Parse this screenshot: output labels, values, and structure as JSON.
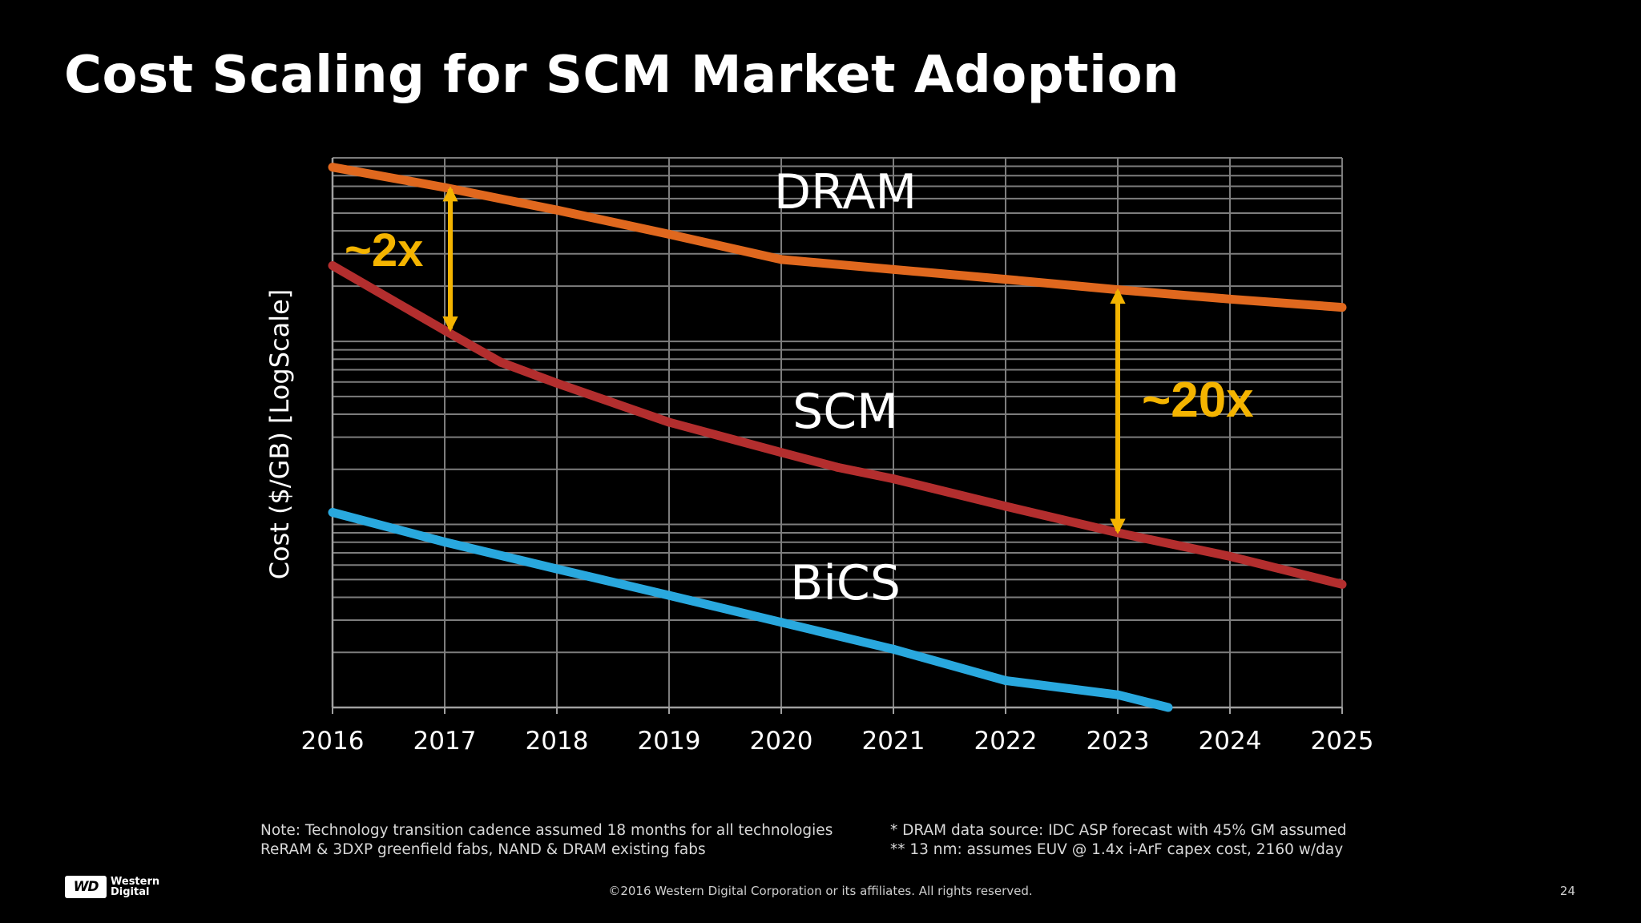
{
  "slide": {
    "title": "Cost Scaling for SCM Market Adoption",
    "notes_left": [
      "Note: Technology transition cadence assumed 18 months for all technologies",
      "ReRAM & 3DXP greenfield fabs, NAND & DRAM existing fabs"
    ],
    "notes_right": [
      "* DRAM data source: IDC ASP forecast with 45% GM assumed",
      "** 13 nm: assumes EUV @ 1.4x i-ArF capex cost, 2160 w/day"
    ],
    "logo_icon": "wd-logo-icon",
    "logo_mark": "WD",
    "logo_text_lines": [
      "Western",
      "Digital"
    ],
    "copyright": "©2016  Western Digital Corporation  or its affiliates.  All rights reserved.",
    "page_number": "24"
  },
  "chart_data": {
    "type": "line",
    "title": "",
    "xlabel": "",
    "ylabel": "Cost ($/GB)  [LogScale]",
    "yscale": "log",
    "y_units": "relative cost, log decades (unlabeled)",
    "xlim": [
      2016,
      2025
    ],
    "ylim": [
      0,
      1
    ],
    "x_ticks": [
      "2016",
      "2017",
      "2018",
      "2019",
      "2020",
      "2021",
      "2022",
      "2023",
      "2024",
      "2025"
    ],
    "y_tick_labels": [],
    "grid": true,
    "legend": "none (series labeled inline)",
    "background": "#000000",
    "series": [
      {
        "name": "DRAM",
        "color": "#e0681e",
        "x": [
          2016,
          2017,
          2018,
          2019,
          2020,
          2021,
          2022,
          2023,
          2024,
          2025
        ],
        "y": [
          0.983,
          0.946,
          0.905,
          0.861,
          0.815,
          0.797,
          0.779,
          0.76,
          0.743,
          0.728
        ]
      },
      {
        "name": "SCM",
        "color": "#b32e2e",
        "x": [
          2016,
          2017,
          2017.5,
          2018,
          2019,
          2020,
          2020.5,
          2021,
          2022,
          2023,
          2024,
          2025
        ],
        "y": [
          0.804,
          0.686,
          0.628,
          0.59,
          0.519,
          0.464,
          0.437,
          0.416,
          0.366,
          0.318,
          0.275,
          0.224
        ]
      },
      {
        "name": "BiCS",
        "color": "#29a8de",
        "x": [
          2016,
          2017,
          2018,
          2019,
          2020,
          2021,
          2022,
          2023,
          2023.45
        ],
        "y": [
          0.355,
          0.301,
          0.252,
          0.204,
          0.155,
          0.106,
          0.049,
          0.023,
          0.0
        ]
      }
    ],
    "annotations": [
      {
        "text": "~2x",
        "type": "double-arrow",
        "x": 2017.05,
        "y_top": 0.946,
        "y_bottom": 0.686,
        "color": "#f4b400"
      },
      {
        "text": "~20x",
        "type": "double-arrow",
        "x": 2023.0,
        "y_top": 0.76,
        "y_bottom": 0.318,
        "color": "#f4b400"
      }
    ]
  }
}
